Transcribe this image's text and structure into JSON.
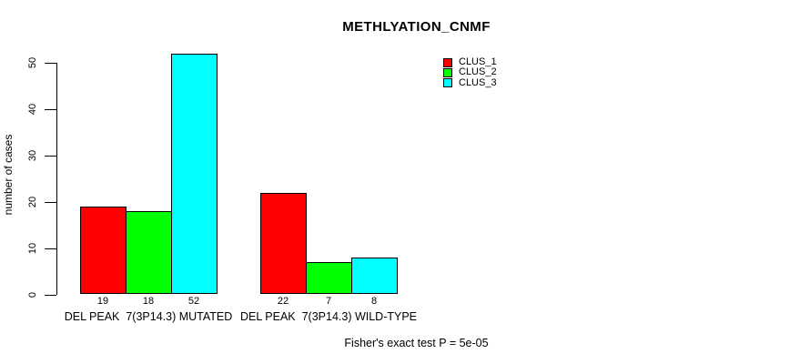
{
  "chart_data": {
    "type": "bar",
    "title": "METHLYATION_CNMF",
    "ylabel": "number of cases",
    "xlabel": "",
    "ylim": [
      0,
      50
    ],
    "yticks": [
      0,
      10,
      20,
      30,
      40,
      50
    ],
    "grid": false,
    "legend_position": "top-right",
    "categories": [
      "DEL PEAK  7(3P14.3) MUTATED",
      "DEL PEAK  7(3P14.3) WILD-TYPE"
    ],
    "series": [
      {
        "name": "CLUS_1",
        "color": "#FF0000",
        "values": [
          19,
          22
        ]
      },
      {
        "name": "CLUS_2",
        "color": "#00FF00",
        "values": [
          18,
          7
        ]
      },
      {
        "name": "CLUS_3",
        "color": "#00FFFF",
        "values": [
          52,
          8
        ]
      }
    ],
    "annotation": "Fisher's exact test P = 5e-05",
    "axis_color": "#000000",
    "background_color": "#FFFFFF"
  }
}
